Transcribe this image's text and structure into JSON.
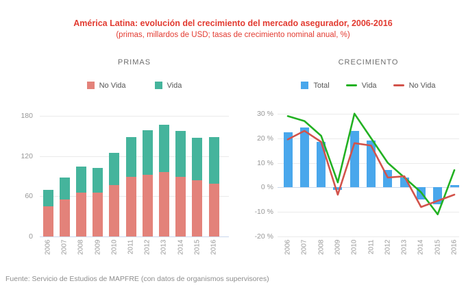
{
  "header": {
    "title": "América Latina: evolución del crecimiento del mercado asegurador, 2006-2016",
    "subtitle": "(primas, millardos de USD; tasas de crecimiento nominal anual, %)"
  },
  "footer": {
    "source": "Fuente: Servicio de Estudios de MAPFRE (con datos de organismos supervisores)"
  },
  "colors": {
    "title_red": "#e23a30",
    "no_vida_bar": "#e3827a",
    "vida_bar": "#45b49c",
    "total_bar": "#49a7ec",
    "vida_line": "#22b122",
    "no_vida_line": "#d2534b",
    "grid": "#eaeaea",
    "axis_line": "#c9d7ec",
    "tick_text": "#9a9a9a"
  },
  "chart_data": [
    {
      "id": "primas",
      "type": "bar",
      "stacked": true,
      "title": "PRIMAS",
      "categories": [
        "2006",
        "2007",
        "2008",
        "2009",
        "2010",
        "2011",
        "2012",
        "2013",
        "2014",
        "2015",
        "2016"
      ],
      "series": [
        {
          "name": "No Vida",
          "type": "bar",
          "color": "#e3827a",
          "values": [
            45,
            55,
            65,
            65,
            77,
            89,
            92,
            96,
            89,
            84,
            79
          ]
        },
        {
          "name": "Vida",
          "type": "bar",
          "color": "#45b49c",
          "values": [
            25,
            33,
            39,
            37,
            48,
            59,
            67,
            71,
            69,
            63,
            69
          ]
        }
      ],
      "ylabel": "",
      "ylim": [
        0,
        180
      ],
      "yticks": [
        0,
        60,
        120,
        180
      ],
      "ytick_suffix": "",
      "grid": true,
      "legend_position": "top"
    },
    {
      "id": "crecimiento",
      "type": "bar+line",
      "stacked": false,
      "title": "CRECIMIENTO",
      "categories": [
        "2006",
        "2007",
        "2008",
        "2009",
        "2010",
        "2011",
        "2012",
        "2013",
        "2014",
        "2015",
        "2016"
      ],
      "series": [
        {
          "name": "Total",
          "type": "bar",
          "color": "#49a7ec",
          "values": [
            22.5,
            24.5,
            18.5,
            -1,
            23,
            19,
            7,
            4,
            -5,
            -7,
            1
          ]
        },
        {
          "name": "Vida",
          "type": "line",
          "color": "#22b122",
          "values": [
            29,
            27,
            21,
            2,
            30,
            20,
            10,
            4,
            -2,
            -11,
            7
          ]
        },
        {
          "name": "No Vida",
          "type": "line",
          "color": "#d2534b",
          "values": [
            19.5,
            23,
            18.5,
            -3,
            18,
            17,
            4,
            4.5,
            -8,
            -5.5,
            -3
          ]
        }
      ],
      "ylabel": "",
      "ylim": [
        -20,
        30
      ],
      "yticks": [
        30,
        20,
        10,
        0,
        -10,
        -20
      ],
      "ytick_suffix": " %",
      "grid": true,
      "legend_position": "top"
    }
  ]
}
